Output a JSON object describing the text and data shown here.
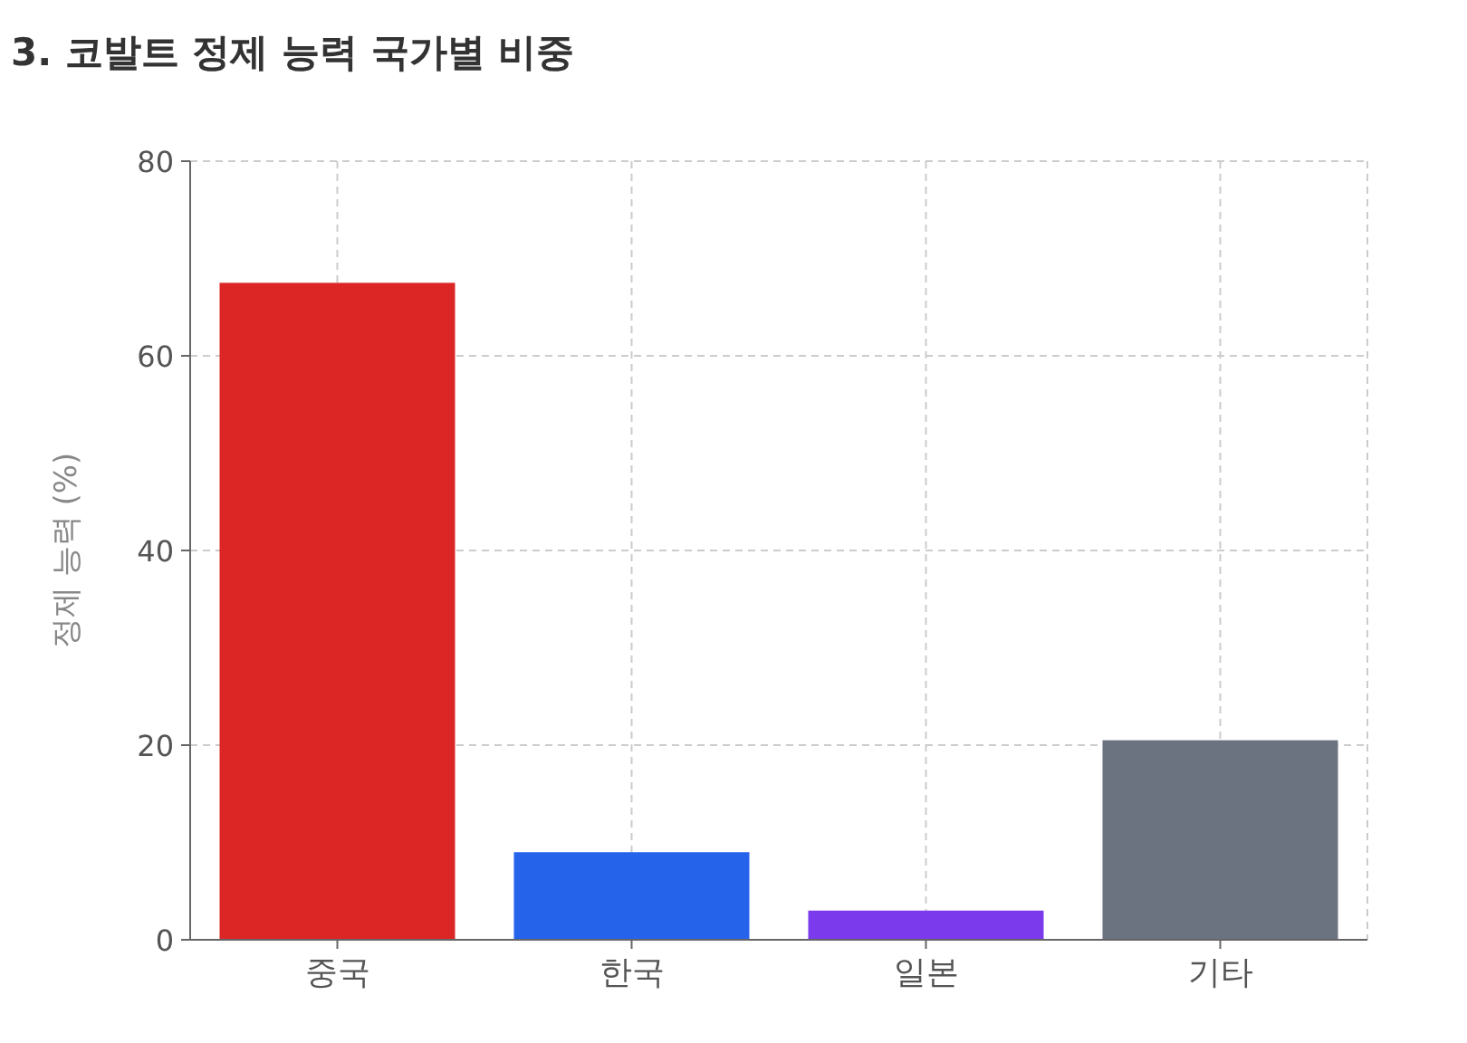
{
  "chart_data": {
    "type": "bar",
    "title": "3. 코발트 정제 능력 국가별 비중",
    "ylabel": "정제 능력 (%)",
    "categories": [
      "중국",
      "한국",
      "일본",
      "기타"
    ],
    "values": [
      67.5,
      9,
      3,
      20.5
    ],
    "colors": [
      "#dc2626",
      "#2563eb",
      "#7c3aed",
      "#6b7280"
    ],
    "ylim": [
      0,
      80
    ],
    "yticks": [
      0,
      20,
      40,
      60,
      80
    ],
    "grid": true
  }
}
